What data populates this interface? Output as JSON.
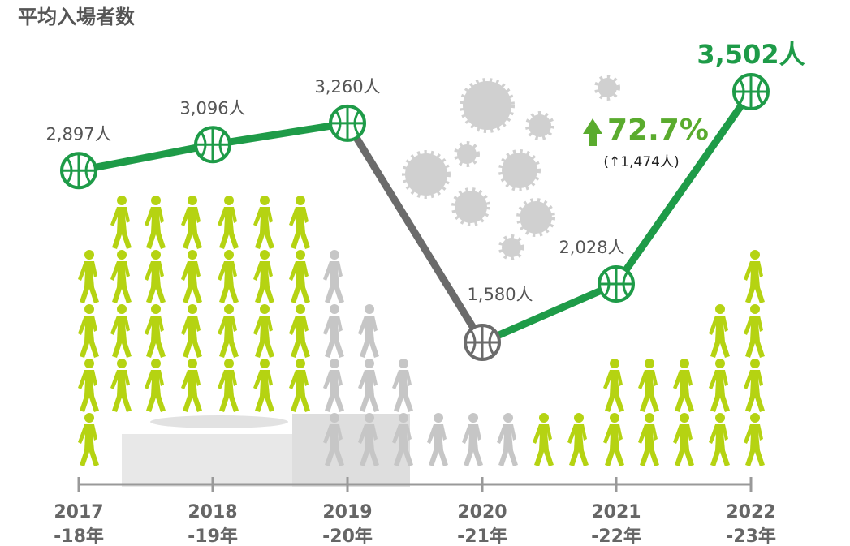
{
  "chart_data": {
    "type": "line",
    "title": "平均入場者数",
    "categories": [
      [
        "2017",
        "-18年"
      ],
      [
        "2018",
        "-19年"
      ],
      [
        "2019",
        "-20年"
      ],
      [
        "2020",
        "-21年"
      ],
      [
        "2021",
        "-22年"
      ],
      [
        "2022",
        "-23年"
      ]
    ],
    "series": [
      {
        "color": "#1e9b48",
        "values": [
          2897,
          3096,
          3260,
          1580,
          2028,
          3502
        ],
        "value_labels": [
          "2,897人",
          "3,096人",
          "3,260人",
          "1,580人",
          "2,028人",
          "3,502人"
        ],
        "marker_colors": [
          "#1e9b48",
          "#1e9b48",
          "#1e9b48",
          "#6b6b6b",
          "#1e9b48",
          "#1e9b48"
        ]
      }
    ],
    "annotations": [
      {
        "text": "72.7%",
        "color": "#5aab2e"
      },
      {
        "text": "(↑1,474人)",
        "color": "#222"
      }
    ]
  }
}
